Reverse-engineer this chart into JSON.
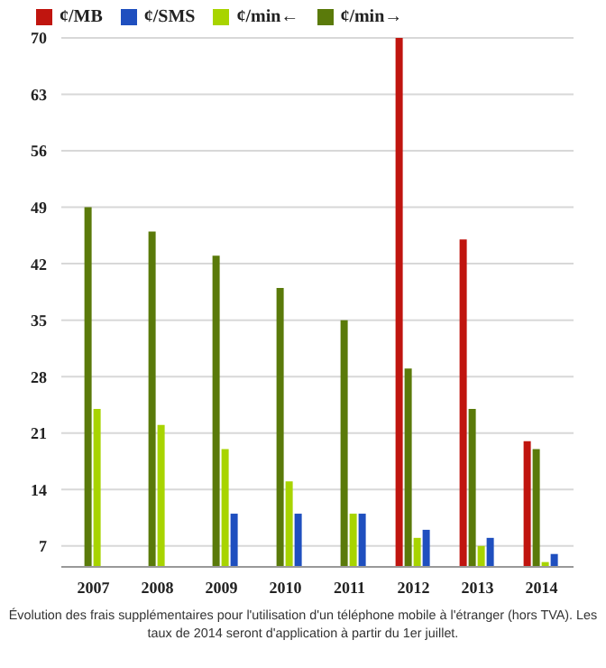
{
  "chart_data": {
    "type": "bar",
    "categories": [
      "2007",
      "2008",
      "2009",
      "2010",
      "2011",
      "2012",
      "2013",
      "2014"
    ],
    "series": [
      {
        "name": "¢/MB",
        "color": "#c0150f",
        "values": [
          null,
          null,
          null,
          null,
          null,
          70,
          45,
          20
        ]
      },
      {
        "name": "¢/min→",
        "color": "#5a7a0a",
        "values": [
          49,
          46,
          43,
          39,
          35,
          29,
          24,
          19
        ]
      },
      {
        "name": "¢/min←",
        "color": "#a8d400",
        "values": [
          24,
          22,
          19,
          15,
          11,
          8,
          7,
          5
        ]
      },
      {
        "name": "¢/SMS",
        "color": "#1f4fbf",
        "values": [
          null,
          null,
          11,
          11,
          11,
          9,
          8,
          6
        ]
      }
    ],
    "ylim": [
      4.4,
      70
    ],
    "yticks": [
      7,
      14,
      21,
      28,
      35,
      42,
      49,
      56,
      63,
      70
    ],
    "grid": "y",
    "legend": "top left",
    "annotations": [
      "Évolution des frais supplémentaires pour l'utilisation d'un téléphone mobile à l'étranger (hors TVA). Les taux de 2014 seront d'application à partir du 1er juillet."
    ]
  }
}
